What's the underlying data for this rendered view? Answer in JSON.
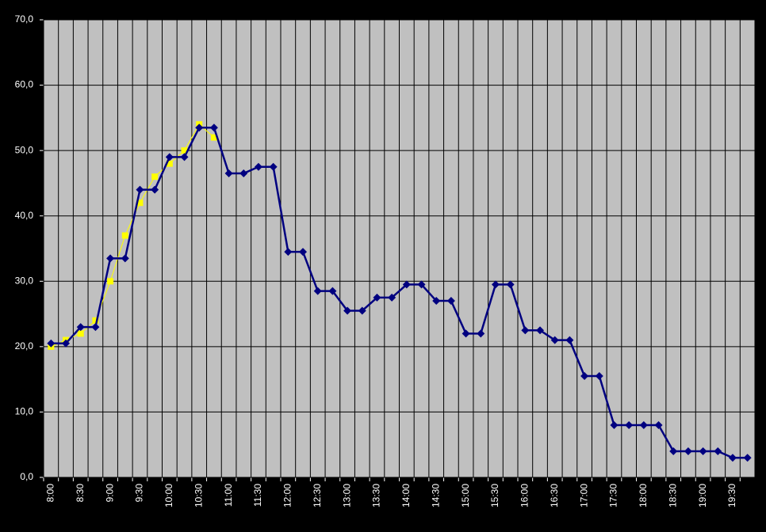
{
  "chart_data": {
    "type": "line",
    "categories": [
      "8:00",
      null,
      "8:30",
      null,
      "9:00",
      null,
      "9:30",
      null,
      "10:00",
      null,
      "10:30",
      null,
      "11:00",
      null,
      "11:30",
      null,
      "12:00",
      null,
      "12:30",
      null,
      "13:00",
      null,
      "13:30",
      null,
      "14:00",
      null,
      "14:30",
      null,
      "15:00",
      null,
      "15:30",
      null,
      "16:00",
      null,
      "16:30",
      null,
      "17:00",
      null,
      "17:30",
      null,
      "18:00",
      null,
      "18:30",
      null,
      "19:00",
      null,
      "19:30",
      null
    ],
    "series": [
      {
        "color": "#ffff00",
        "marker": "square",
        "values": [
          20,
          21,
          22,
          24,
          30,
          37,
          42,
          46,
          48,
          50,
          54,
          52,
          null,
          null,
          null,
          null,
          null,
          null,
          null,
          null,
          null,
          null,
          null,
          null,
          null,
          null,
          null,
          null,
          null,
          null,
          null,
          null,
          null,
          null,
          null,
          null,
          null,
          null,
          null,
          null,
          null,
          null,
          null,
          null,
          null,
          null,
          null,
          null
        ]
      },
      {
        "color": "#000080",
        "marker": "diamond",
        "values": [
          20.5,
          20.5,
          23,
          23,
          33.5,
          33.5,
          44,
          44,
          49,
          49,
          53.5,
          53.5,
          46.5,
          46.5,
          47.5,
          47.5,
          34.5,
          34.5,
          28.5,
          28.5,
          25.5,
          25.5,
          27.5,
          27.5,
          29.5,
          29.5,
          27,
          27,
          22,
          22,
          29.5,
          29.5,
          22.5,
          22.5,
          21,
          21,
          15.5,
          15.5,
          8,
          8,
          8,
          8,
          4,
          4,
          4,
          4,
          3,
          3
        ]
      }
    ],
    "ylim": [
      0,
      70
    ],
    "yticks": [
      {
        "value": 0,
        "label": "0,0"
      },
      {
        "value": 10,
        "label": "10,0"
      },
      {
        "value": 20,
        "label": "20,0"
      },
      {
        "value": 30,
        "label": "30,0"
      },
      {
        "value": 40,
        "label": "40,0"
      },
      {
        "value": 50,
        "label": "50,0"
      },
      {
        "value": 60,
        "label": "60,0"
      },
      {
        "value": 70,
        "label": "70,0"
      }
    ],
    "grid": true,
    "plot_background": "#c0c0c0"
  }
}
